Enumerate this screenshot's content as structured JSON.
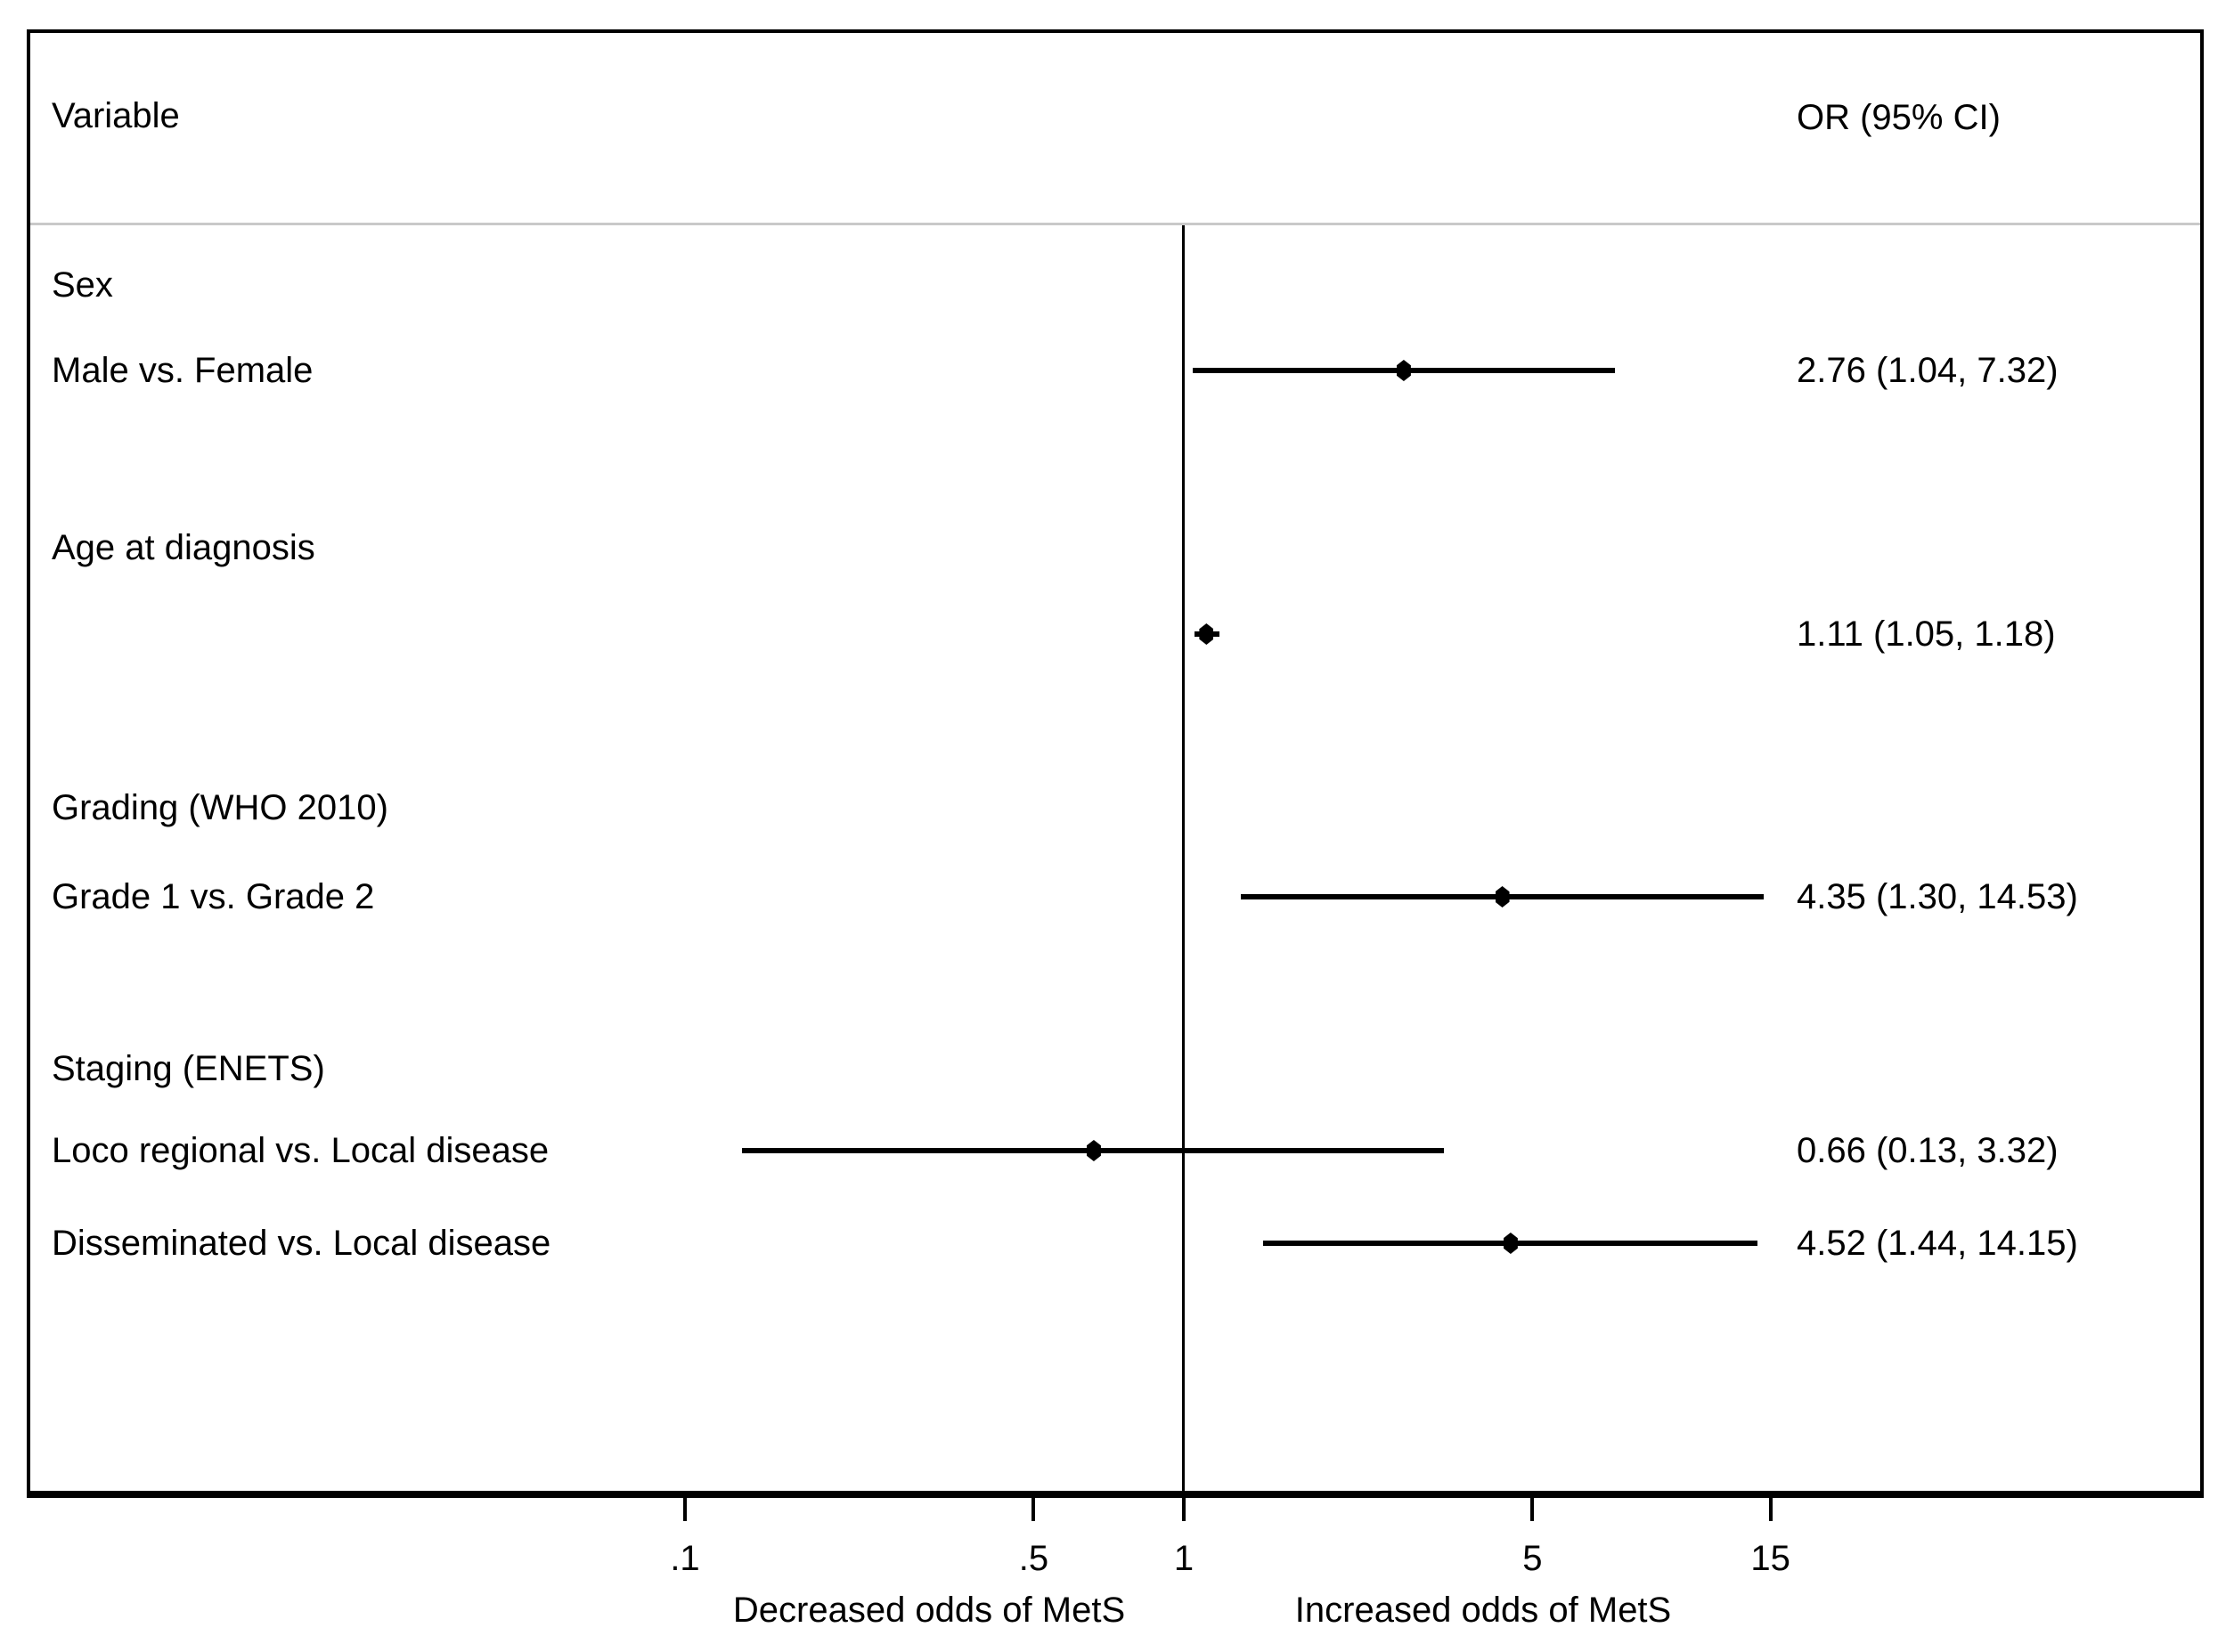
{
  "header": {
    "variable": "Variable",
    "or_ci": "OR (95% CI)"
  },
  "chart_data": {
    "type": "forest",
    "title": "",
    "x_axis": {
      "scale": "log",
      "ticks": [
        0.1,
        0.5,
        1,
        5,
        15
      ],
      "tick_labels": [
        ".1",
        ".5",
        "1",
        "5",
        "15"
      ],
      "reference_line": 1,
      "left_caption": "Decreased odds of MetS",
      "right_caption": "Increased odds of MetS"
    },
    "rows": [
      {
        "type": "group",
        "label": "Sex"
      },
      {
        "type": "estimate",
        "label": "Male vs. Female",
        "or": 2.76,
        "ci_low": 1.04,
        "ci_high": 7.32,
        "or_text": "2.76 (1.04, 7.32)"
      },
      {
        "type": "group",
        "label": "Age at diagnosis"
      },
      {
        "type": "estimate",
        "label": "",
        "or": 1.11,
        "ci_low": 1.05,
        "ci_high": 1.18,
        "or_text": "1.11 (1.05, 1.18)"
      },
      {
        "type": "group",
        "label": "Grading (WHO 2010)"
      },
      {
        "type": "estimate",
        "label": "Grade 1 vs. Grade 2",
        "or": 4.35,
        "ci_low": 1.3,
        "ci_high": 14.53,
        "or_text": "4.35 (1.30, 14.53)"
      },
      {
        "type": "group",
        "label": "Staging (ENETS)"
      },
      {
        "type": "estimate",
        "label": "Loco regional vs. Local disease",
        "or": 0.66,
        "ci_low": 0.13,
        "ci_high": 3.32,
        "or_text": "0.66 (0.13, 3.32)"
      },
      {
        "type": "estimate",
        "label": "Disseminated vs. Local disease",
        "or": 4.52,
        "ci_low": 1.44,
        "ci_high": 14.15,
        "or_text": "4.52 (1.44, 14.15)"
      }
    ],
    "colors": {
      "line": "#000000",
      "text": "#000000",
      "divider": "#c9c9c9",
      "background": "#ffffff"
    }
  }
}
